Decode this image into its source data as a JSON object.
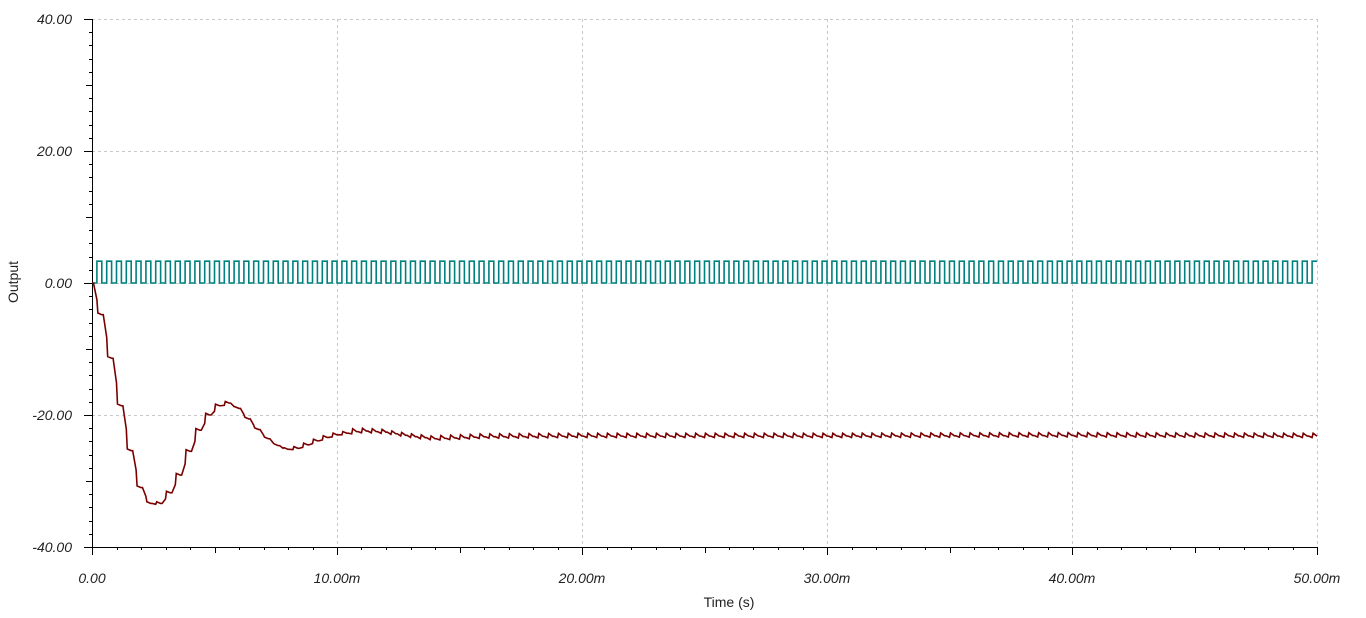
{
  "chart_data": {
    "type": "line",
    "title": "",
    "xlabel": "Time (s)",
    "ylabel": "Output",
    "xlim": [
      0,
      0.05
    ],
    "ylim": [
      -40,
      40
    ],
    "grid": true,
    "x_ticks": [
      {
        "value": 0,
        "label": "0.00"
      },
      {
        "value": 0.01,
        "label": "10.00m"
      },
      {
        "value": 0.02,
        "label": "20.00m"
      },
      {
        "value": 0.03,
        "label": "30.00m"
      },
      {
        "value": 0.04,
        "label": "40.00m"
      },
      {
        "value": 0.05,
        "label": "50.00m"
      }
    ],
    "y_ticks": [
      {
        "value": 40,
        "label": "40.00"
      },
      {
        "value": 20,
        "label": "20.00"
      },
      {
        "value": 0,
        "label": "0.00"
      },
      {
        "value": -20,
        "label": "-20.00"
      },
      {
        "value": -40,
        "label": "-40.00"
      }
    ],
    "series": [
      {
        "color": "#00807f",
        "kind": "square-wave",
        "low": 0,
        "high": 3.3,
        "period": 0.0004,
        "duty": 0.5,
        "start": 0.0002,
        "end": 0.05
      },
      {
        "color": "#7a0000",
        "kind": "staircase-response",
        "step": 0.0004,
        "ripple": 1.2,
        "x": [
          0,
          0.0005,
          0.001,
          0.0015,
          0.002,
          0.0025,
          0.003,
          0.0035,
          0.004,
          0.0045,
          0.005,
          0.0055,
          0.006,
          0.0065,
          0.007,
          0.0075,
          0.008,
          0.0085,
          0.009,
          0.0095,
          0.01,
          0.011,
          0.012,
          0.013,
          0.014,
          0.016,
          0.02,
          0.03,
          0.04,
          0.05
        ],
        "y": [
          0,
          -6,
          -15,
          -24,
          -31,
          -34,
          -33,
          -30,
          -25.5,
          -21.5,
          -19,
          -18,
          -19,
          -21,
          -23,
          -24.5,
          -25.2,
          -25,
          -24.2,
          -23.5,
          -23,
          -22.4,
          -22.6,
          -23.2,
          -23.6,
          -23.3,
          -23.2,
          -23.2,
          -23.1,
          -23.2
        ]
      }
    ]
  }
}
